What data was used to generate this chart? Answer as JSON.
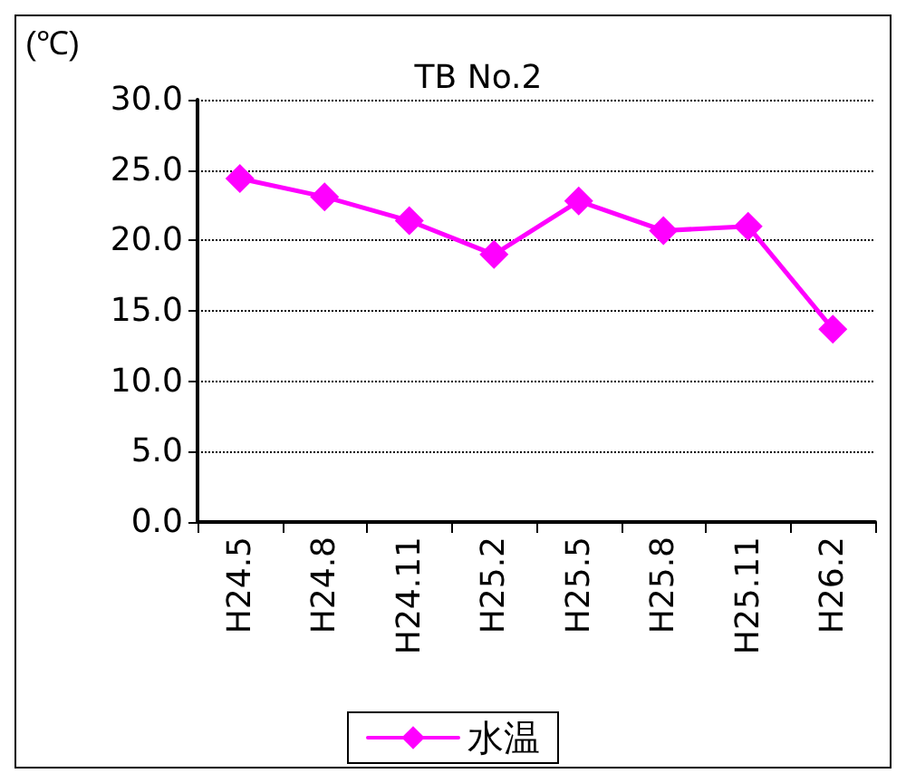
{
  "chart_data": {
    "type": "line",
    "title": "TB No.2",
    "ylabel": "(℃)",
    "categories": [
      "H24.5",
      "H24.8",
      "H24.11",
      "H25.2",
      "H25.5",
      "H25.8",
      "H25.11",
      "H26.2"
    ],
    "series": [
      {
        "name": "水温",
        "color": "#ff00ff",
        "values": [
          24.4,
          23.1,
          21.4,
          19.0,
          22.8,
          20.7,
          21.0,
          13.7
        ]
      }
    ],
    "ylim": [
      0,
      30
    ],
    "yticks": [
      {
        "value": 0,
        "label": "0.0"
      },
      {
        "value": 5,
        "label": "5.0"
      },
      {
        "value": 10,
        "label": "10.0"
      },
      {
        "value": 15,
        "label": "15.0"
      },
      {
        "value": 20,
        "label": "20.0"
      },
      {
        "value": 25,
        "label": "25.0"
      },
      {
        "value": 30,
        "label": "30.0"
      }
    ],
    "grid": "y",
    "legend": "bottom",
    "marker": "diamond",
    "line_style": "solid"
  }
}
